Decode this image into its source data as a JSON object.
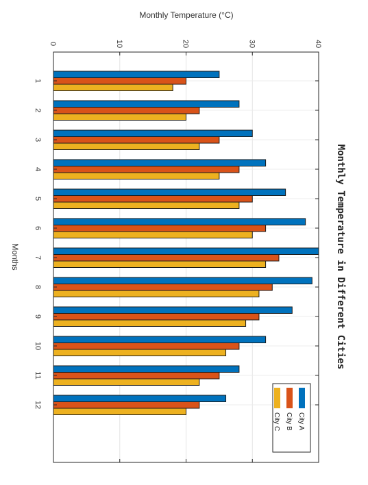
{
  "chart_data": {
    "type": "bar",
    "orientation": "rotated-90-clockwise",
    "title": "Monthly Temperature in Different Cities",
    "xlabel": "Months",
    "ylabel": "Monthly Temperature (°C)",
    "categories": [
      "1",
      "2",
      "3",
      "4",
      "5",
      "6",
      "7",
      "8",
      "9",
      "10",
      "11",
      "12"
    ],
    "ylim": [
      0,
      40
    ],
    "yticks": [
      0,
      10,
      20,
      30,
      40
    ],
    "grid": true,
    "legend_position": "bottom-right",
    "series": [
      {
        "name": "City A",
        "color": "#0072BD",
        "values": [
          25,
          28,
          30,
          32,
          35,
          38,
          40,
          39,
          36,
          32,
          28,
          26
        ]
      },
      {
        "name": "City B",
        "color": "#D95319",
        "values": [
          20,
          22,
          25,
          28,
          30,
          32,
          34,
          33,
          31,
          28,
          25,
          22
        ]
      },
      {
        "name": "City C",
        "color": "#EDB120",
        "values": [
          18,
          20,
          22,
          25,
          28,
          30,
          32,
          31,
          29,
          26,
          22,
          20
        ]
      }
    ]
  }
}
